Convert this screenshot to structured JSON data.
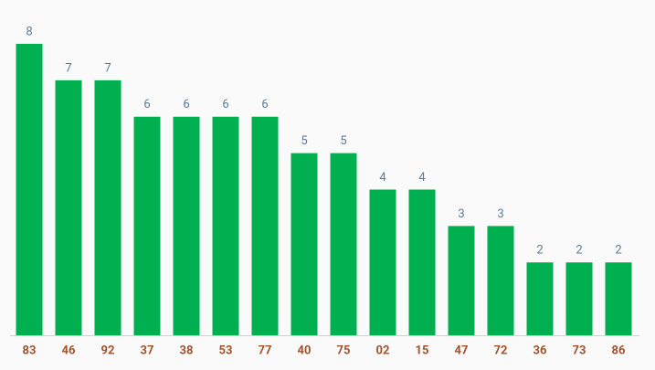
{
  "chart_data": {
    "type": "bar",
    "categories": [
      "83",
      "46",
      "92",
      "37",
      "38",
      "53",
      "77",
      "40",
      "75",
      "02",
      "15",
      "47",
      "72",
      "36",
      "73",
      "86"
    ],
    "values": [
      8,
      7,
      7,
      6,
      6,
      6,
      6,
      5,
      5,
      4,
      4,
      3,
      3,
      2,
      2,
      2
    ],
    "color": "#00b050"
  }
}
